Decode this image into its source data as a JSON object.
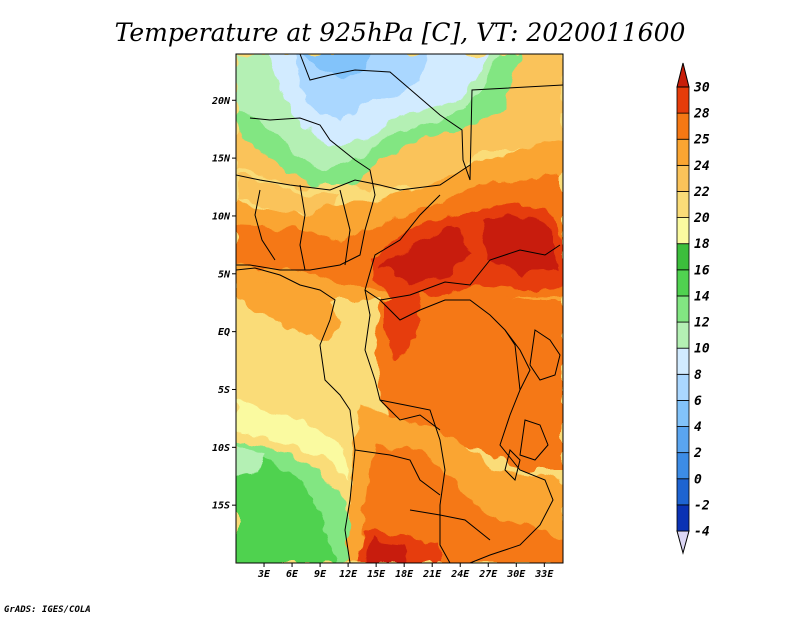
{
  "title": "Temperature at 925hPa [C], VT: 2020011600",
  "credit": "GrADS: IGES/COLA",
  "chart_data": {
    "type": "heatmap",
    "variable": "Temperature at 925hPa",
    "units": "C",
    "valid_time": "2020011600",
    "lon_range_deg_e": [
      0,
      35
    ],
    "lat_range_deg_n": [
      -20,
      24
    ],
    "x_ticks": [
      {
        "value": 3,
        "label": "3E"
      },
      {
        "value": 6,
        "label": "6E"
      },
      {
        "value": 9,
        "label": "9E"
      },
      {
        "value": 12,
        "label": "12E"
      },
      {
        "value": 15,
        "label": "15E"
      },
      {
        "value": 18,
        "label": "18E"
      },
      {
        "value": 21,
        "label": "21E"
      },
      {
        "value": 24,
        "label": "24E"
      },
      {
        "value": 27,
        "label": "27E"
      },
      {
        "value": 30,
        "label": "30E"
      },
      {
        "value": 33,
        "label": "33E"
      }
    ],
    "y_ticks": [
      {
        "value": 20,
        "label": "20N"
      },
      {
        "value": 15,
        "label": "15N"
      },
      {
        "value": 10,
        "label": "10N"
      },
      {
        "value": 5,
        "label": "5N"
      },
      {
        "value": 0,
        "label": "EQ"
      },
      {
        "value": -5,
        "label": "5S"
      },
      {
        "value": -10,
        "label": "10S"
      },
      {
        "value": -15,
        "label": "15S"
      }
    ],
    "colorbar": {
      "levels": [
        -4,
        -2,
        0,
        2,
        4,
        6,
        8,
        10,
        12,
        14,
        16,
        18,
        20,
        22,
        24,
        25,
        28,
        30
      ],
      "labels": [
        "-4",
        "-2",
        "0",
        "2",
        "4",
        "6",
        "8",
        "10",
        "12",
        "14",
        "16",
        "18",
        "20",
        "22",
        "24",
        "25",
        "28",
        "30"
      ],
      "colors": [
        "#120a6a",
        "#0a32b4",
        "#1e64d2",
        "#3c8ce6",
        "#5aa5f0",
        "#82c3fa",
        "#aad7ff",
        "#d2ebff",
        "#b4f0b4",
        "#82e682",
        "#50d250",
        "#3cbe3c",
        "#fafaa0",
        "#fadc78",
        "#fac35a",
        "#faa532",
        "#f57814",
        "#e63c0a",
        "#c81e0a"
      ],
      "under_color": "#dcd7f5",
      "over_color": "#c81e0a"
    }
  }
}
